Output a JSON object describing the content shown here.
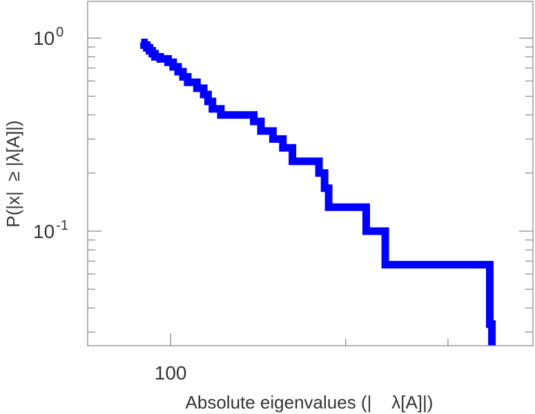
{
  "chart_data": {
    "type": "line",
    "step": true,
    "xlabel": "Absolute eigenvalues (|    λ[A]|)",
    "ylabel": "P(|x|  ≥ |λ[A]|)",
    "x_scale": "log",
    "y_scale": "log",
    "xlim": [
      72,
      420
    ],
    "ylim": [
      0.0255,
      1.55
    ],
    "x_major_ticks": [
      {
        "value": 100,
        "label": "100"
      }
    ],
    "x_minor_ticks": [
      200,
      300
    ],
    "y_major_ticks": [
      {
        "value": 1,
        "base": "10",
        "exponent": "0"
      },
      {
        "value": 0.1,
        "base": "10",
        "exponent": "-1"
      }
    ],
    "y_minor_ticks": [
      0.9,
      0.8,
      0.7,
      0.6,
      0.5,
      0.4,
      0.3,
      0.2,
      0.09,
      0.08,
      0.07,
      0.06,
      0.05,
      0.04,
      0.03
    ],
    "grid": false,
    "legend": "none",
    "series": [
      {
        "color": "#0000ff",
        "points": [
          [
            89.0,
            0.95
          ],
          [
            90.0,
            0.92
          ],
          [
            91.0,
            0.89
          ],
          [
            92.0,
            0.86
          ],
          [
            93.0,
            0.83
          ],
          [
            94.0,
            0.8
          ],
          [
            96.0,
            0.78
          ],
          [
            99.0,
            0.75
          ],
          [
            101.0,
            0.71
          ],
          [
            103.0,
            0.67
          ],
          [
            105.0,
            0.63
          ],
          [
            107.0,
            0.59
          ],
          [
            111.0,
            0.55
          ],
          [
            114.0,
            0.51
          ],
          [
            116.0,
            0.47
          ],
          [
            118.0,
            0.43
          ],
          [
            122.0,
            0.4
          ],
          [
            139.0,
            0.37
          ],
          [
            143.0,
            0.33
          ],
          [
            150.0,
            0.3
          ],
          [
            156.0,
            0.27
          ],
          [
            162.0,
            0.23
          ],
          [
            180.0,
            0.2
          ],
          [
            184.0,
            0.167
          ],
          [
            187.0,
            0.133
          ],
          [
            217.0,
            0.1
          ],
          [
            234.0,
            0.067
          ],
          [
            354.0,
            0.033
          ],
          [
            357.0,
            0.0255
          ]
        ]
      }
    ]
  }
}
